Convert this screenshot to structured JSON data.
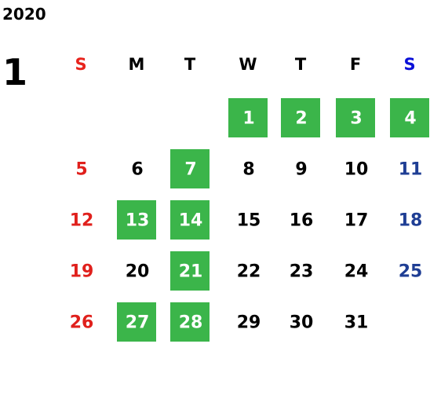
{
  "year": "2020",
  "month": "1",
  "weekdays": [
    "S",
    "M",
    "T",
    "W",
    "T",
    "F",
    "S"
  ],
  "weeks": [
    [
      null,
      null,
      null,
      {
        "day": "1",
        "highlight": true
      },
      {
        "day": "2",
        "highlight": true
      },
      {
        "day": "3",
        "highlight": true
      },
      {
        "day": "4",
        "highlight": true
      }
    ],
    [
      {
        "day": "5",
        "highlight": false
      },
      {
        "day": "6",
        "highlight": false
      },
      {
        "day": "7",
        "highlight": true
      },
      {
        "day": "8",
        "highlight": false
      },
      {
        "day": "9",
        "highlight": false
      },
      {
        "day": "10",
        "highlight": false
      },
      {
        "day": "11",
        "highlight": false
      }
    ],
    [
      {
        "day": "12",
        "highlight": false
      },
      {
        "day": "13",
        "highlight": true
      },
      {
        "day": "14",
        "highlight": true
      },
      {
        "day": "15",
        "highlight": false
      },
      {
        "day": "16",
        "highlight": false
      },
      {
        "day": "17",
        "highlight": false
      },
      {
        "day": "18",
        "highlight": false
      }
    ],
    [
      {
        "day": "19",
        "highlight": false
      },
      {
        "day": "20",
        "highlight": false
      },
      {
        "day": "21",
        "highlight": true
      },
      {
        "day": "22",
        "highlight": false
      },
      {
        "day": "23",
        "highlight": false
      },
      {
        "day": "24",
        "highlight": false
      },
      {
        "day": "25",
        "highlight": false
      }
    ],
    [
      {
        "day": "26",
        "highlight": false
      },
      {
        "day": "27",
        "highlight": true
      },
      {
        "day": "28",
        "highlight": true
      },
      {
        "day": "29",
        "highlight": false
      },
      {
        "day": "30",
        "highlight": false
      },
      {
        "day": "31",
        "highlight": false
      },
      null
    ]
  ]
}
